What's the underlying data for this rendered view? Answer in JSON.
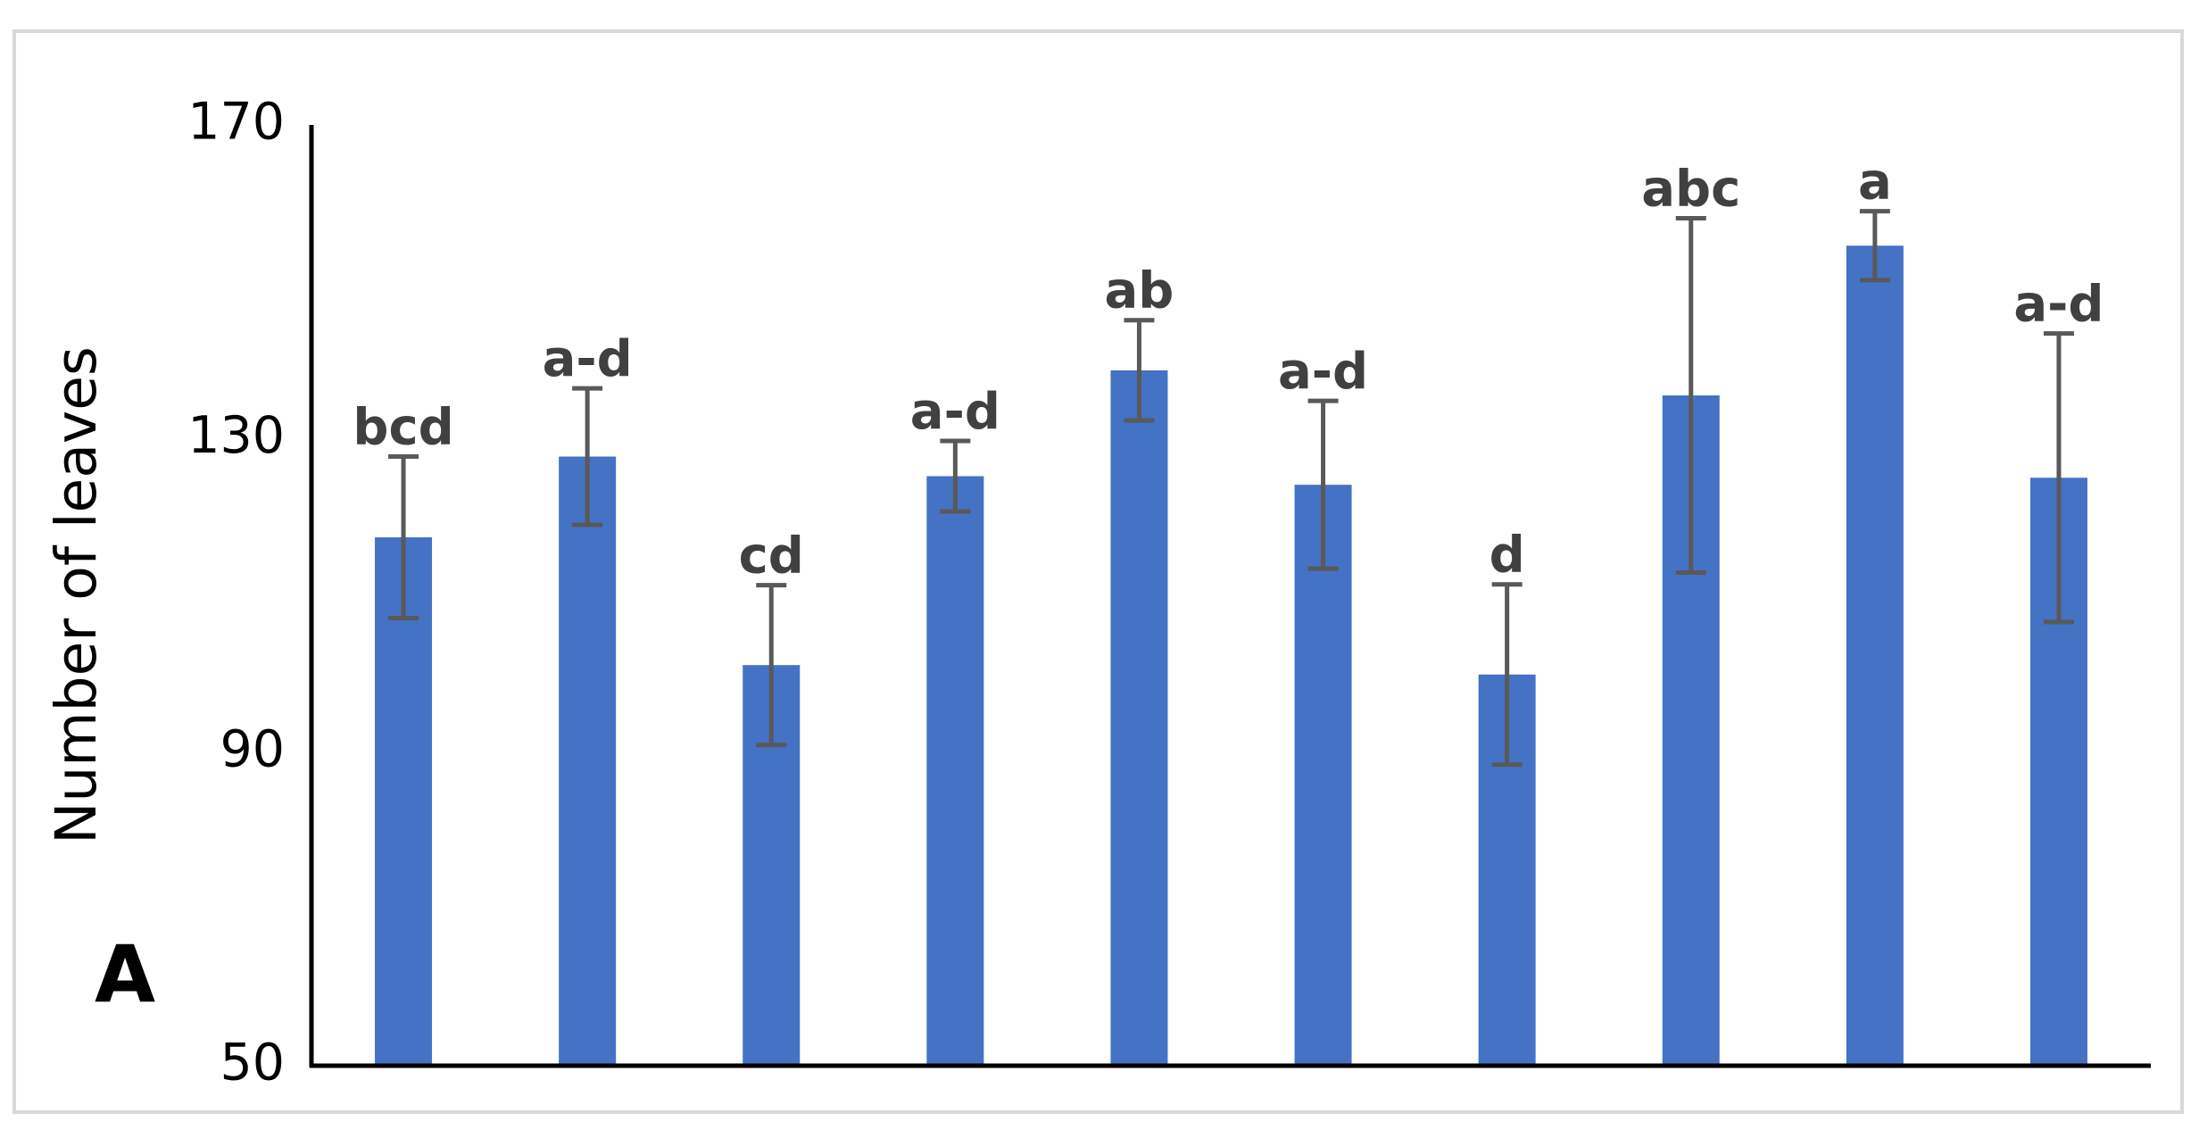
{
  "chart_data": {
    "type": "bar",
    "panel_label": "A",
    "y_label": "Number of leaves",
    "categories": [
      null,
      null,
      null,
      null,
      null,
      null,
      null,
      null,
      null,
      null
    ],
    "values": [
      117.4,
      127.7,
      101.1,
      125.2,
      138.7,
      124.1,
      99.9,
      135.5,
      154.6,
      125.0
    ],
    "errors": [
      10.3,
      8.7,
      10.2,
      4.5,
      6.4,
      10.7,
      11.5,
      22.6,
      4.4,
      18.4
    ],
    "annotations": [
      "bcd",
      "a-d",
      "cd",
      "a-d",
      "ab",
      "a-d",
      "d",
      "abc",
      "a",
      "a-d"
    ],
    "color": "#4472c4",
    "error_color": "#595959",
    "ylim": [
      50,
      170
    ],
    "yticks": [
      50,
      90,
      130,
      170
    ],
    "grid": false
  }
}
